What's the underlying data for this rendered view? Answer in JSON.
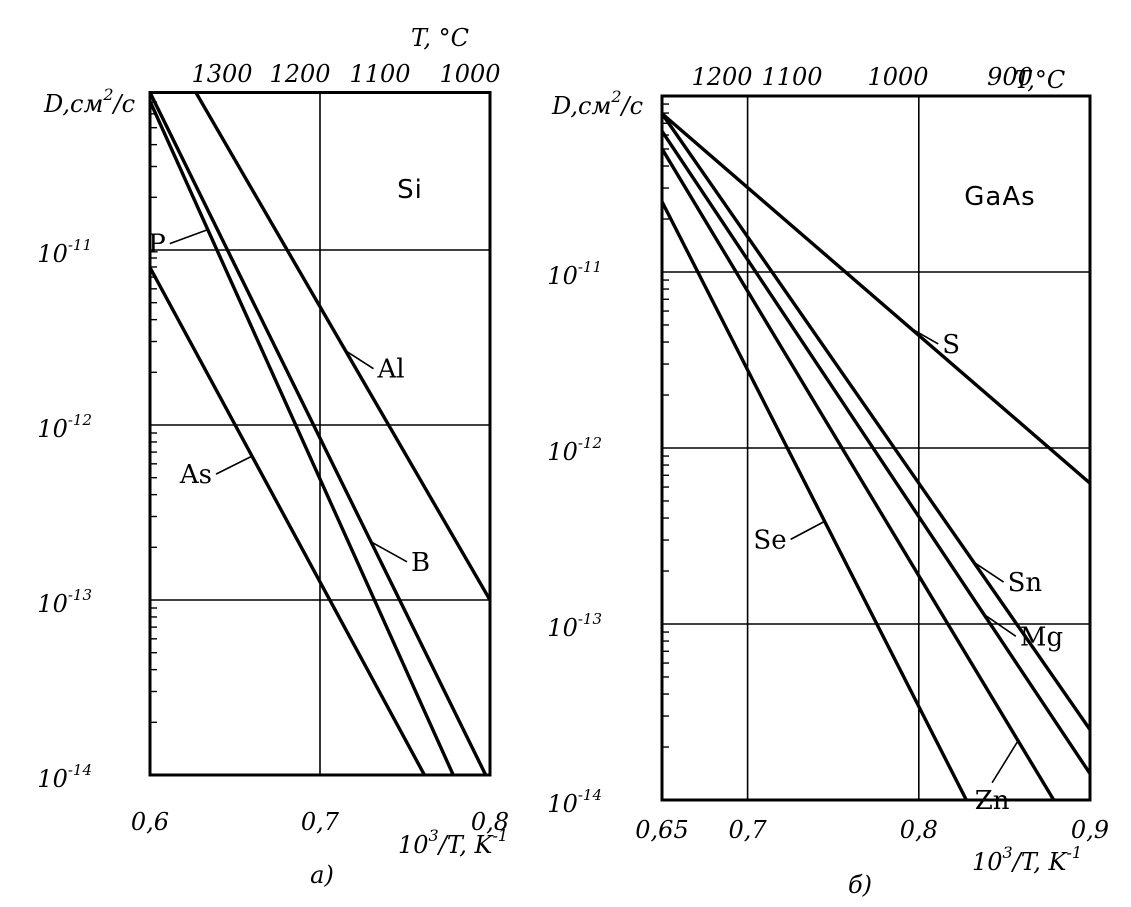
{
  "chart_data": [
    {
      "type": "line",
      "panel_label": "а)",
      "material": "Si",
      "y_title_main": "D,см",
      "y_title_sup": "2",
      "y_title_end": "/с",
      "x_title_main": "10",
      "x_title_sup": "3",
      "x_title_end": "/T, K",
      "x_title_exp": "-1",
      "top_title": "T, °C",
      "xlim": [
        0.6,
        0.8
      ],
      "ylim_log10": [
        -14,
        -10.1
      ],
      "y_scale": "log",
      "grid": true,
      "x_ticks": [
        {
          "value": 0.6,
          "label": "0,6"
        },
        {
          "value": 0.7,
          "label": "0,7"
        },
        {
          "value": 0.8,
          "label": "0,8"
        }
      ],
      "y_ticks": [
        {
          "exp": -11,
          "base": "10",
          "sup": "-11"
        },
        {
          "exp": -12,
          "base": "10",
          "sup": "-12"
        },
        {
          "exp": -13,
          "base": "10",
          "sup": "-13"
        },
        {
          "exp": -14,
          "base": "10",
          "sup": "-14"
        }
      ],
      "top_ticks": [
        {
          "value": 1300,
          "label": "1300"
        },
        {
          "value": 1200,
          "label": "1200"
        },
        {
          "value": 1100,
          "label": "1100"
        },
        {
          "value": 1000,
          "label": "1000"
        }
      ],
      "series": [
        {
          "name": "Al",
          "x": [
            0.627,
            0.8
          ],
          "y": [
            -10.1,
            -13.0
          ]
        },
        {
          "name": "B",
          "x": [
            0.6,
            0.8
          ],
          "y": [
            -10.1,
            -14.05
          ]
        },
        {
          "name": "P",
          "x": [
            0.6,
            0.783
          ],
          "y": [
            -10.15,
            -14.1
          ]
        },
        {
          "name": "As",
          "x": [
            0.6,
            0.767
          ],
          "y": [
            -11.1,
            -14.1
          ]
        }
      ],
      "labels": [
        {
          "series": "Al",
          "text": "Al"
        },
        {
          "series": "B",
          "text": "B"
        },
        {
          "series": "P",
          "text": "P"
        },
        {
          "series": "As",
          "text": "As"
        }
      ]
    },
    {
      "type": "line",
      "panel_label": "б)",
      "material": "GaAs",
      "y_title_main": "D,см",
      "y_title_sup": "2",
      "y_title_end": "/с",
      "x_title_main": "10",
      "x_title_sup": "3",
      "x_title_end": "/T, K",
      "x_title_exp": "-1",
      "top_title": "T,°C",
      "xlim": [
        0.65,
        0.9
      ],
      "ylim_log10": [
        -14,
        -10.0
      ],
      "y_scale": "log",
      "grid": true,
      "x_ticks": [
        {
          "value": 0.65,
          "label": "0,65"
        },
        {
          "value": 0.7,
          "label": "0,7"
        },
        {
          "value": 0.8,
          "label": "0,8"
        },
        {
          "value": 0.9,
          "label": "0,9"
        }
      ],
      "y_ticks": [
        {
          "exp": -11,
          "base": "10",
          "sup": "-11"
        },
        {
          "exp": -12,
          "base": "10",
          "sup": "-12"
        },
        {
          "exp": -13,
          "base": "10",
          "sup": "-13"
        },
        {
          "exp": -14,
          "base": "10",
          "sup": "-14"
        }
      ],
      "top_ticks": [
        {
          "value": 1200,
          "label": "1200"
        },
        {
          "value": 1100,
          "label": "1100"
        },
        {
          "value": 1000,
          "label": "1000"
        },
        {
          "value": 900,
          "label": "900"
        }
      ],
      "series": [
        {
          "name": "S",
          "x": [
            0.65,
            0.9
          ],
          "y": [
            -10.1,
            -12.2
          ]
        },
        {
          "name": "Sn",
          "x": [
            0.65,
            0.9
          ],
          "y": [
            -10.1,
            -13.6
          ]
        },
        {
          "name": "Mg",
          "x": [
            0.65,
            0.9
          ],
          "y": [
            -10.2,
            -13.85
          ]
        },
        {
          "name": "Zn",
          "x": [
            0.65,
            0.885
          ],
          "y": [
            -10.3,
            -14.1
          ]
        },
        {
          "name": "Se",
          "x": [
            0.65,
            0.833
          ],
          "y": [
            -10.6,
            -14.1
          ]
        }
      ],
      "labels": [
        {
          "series": "S",
          "text": "S"
        },
        {
          "series": "Sn",
          "text": "Sn"
        },
        {
          "series": "Mg",
          "text": "Mg"
        },
        {
          "series": "Zn",
          "text": "Zn"
        },
        {
          "series": "Se",
          "text": "Se"
        }
      ]
    }
  ]
}
